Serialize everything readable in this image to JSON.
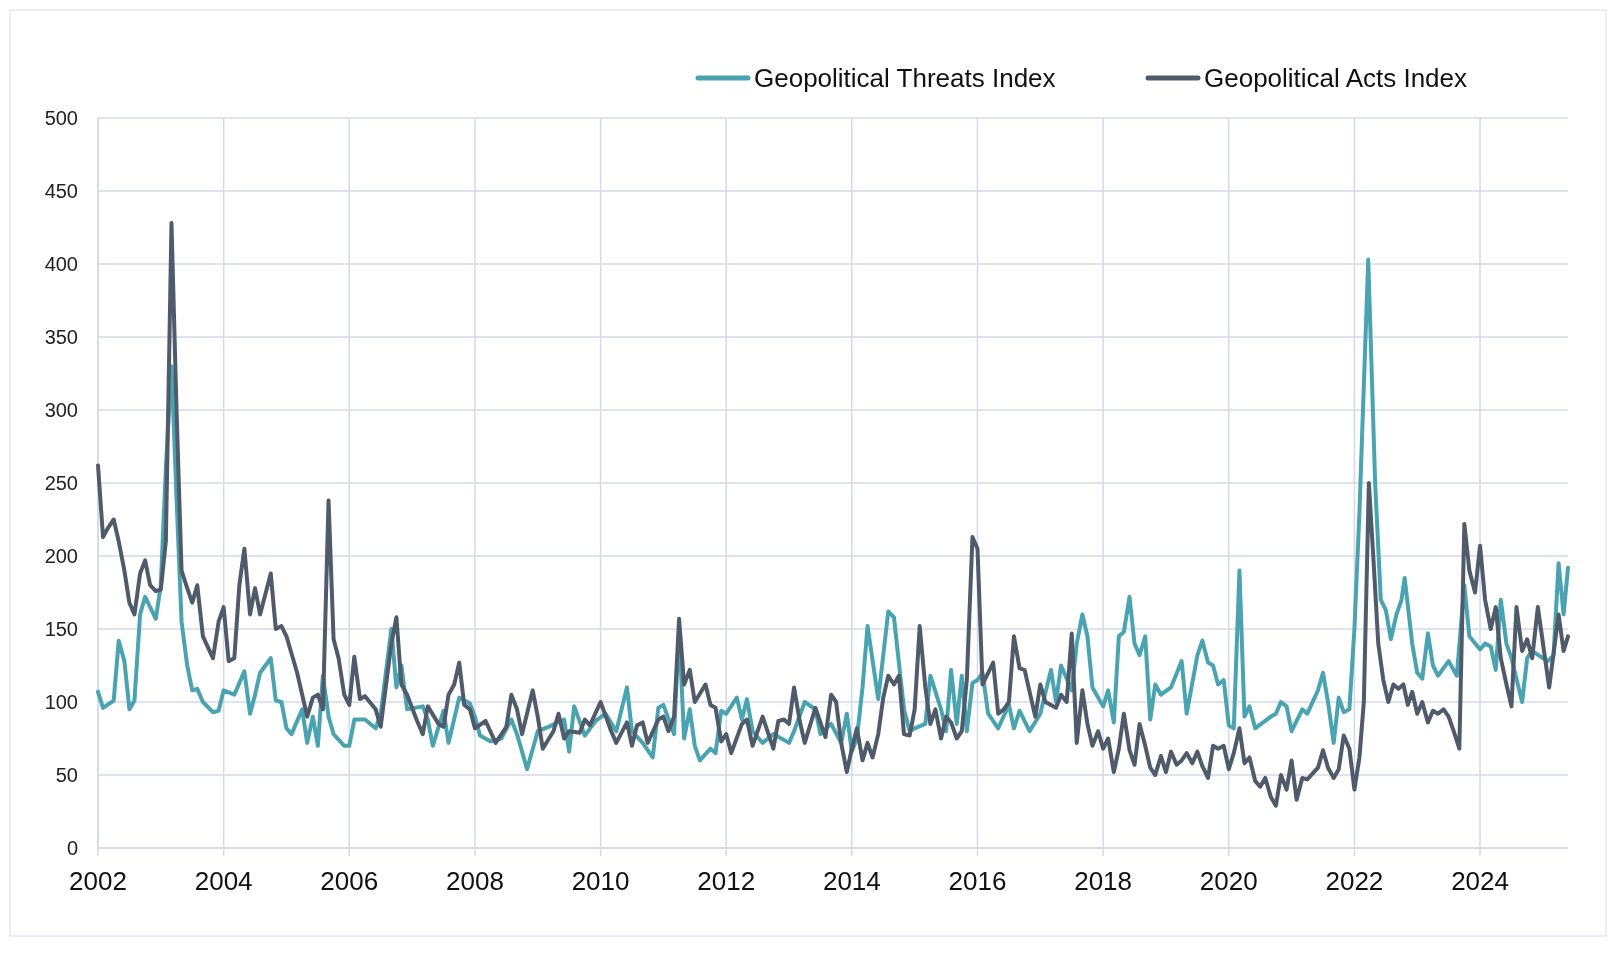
{
  "chart_data": {
    "type": "line",
    "xlim": [
      2002,
      2025.4
    ],
    "xticks": [
      2002,
      2004,
      2006,
      2008,
      2010,
      2012,
      2014,
      2016,
      2018,
      2020,
      2022,
      2024
    ],
    "ylim": [
      0,
      500
    ],
    "yticks": [
      0,
      50,
      100,
      150,
      200,
      250,
      300,
      350,
      400,
      450,
      500
    ],
    "grid": true,
    "legend": "top right",
    "marker": "none",
    "line_style": "solid",
    "series": [
      {
        "name": "Geopolitical Threats Index",
        "color": "#4aa3b0",
        "x": [
          2002,
          2002.08,
          2002.25,
          2002.33,
          2002.42,
          2002.5,
          2002.58,
          2002.67,
          2002.75,
          2002.83,
          2002.92,
          2003,
          2003.08,
          2003.17,
          2003.25,
          2003.33,
          2003.42,
          2003.5,
          2003.58,
          2003.67,
          2003.83,
          2003.92,
          2004,
          2004.17,
          2004.33,
          2004.42,
          2004.5,
          2004.58,
          2004.75,
          2004.83,
          2004.92,
          2005,
          2005.08,
          2005.25,
          2005.33,
          2005.42,
          2005.5,
          2005.58,
          2005.67,
          2005.75,
          2005.92,
          2006,
          2006.08,
          2006.25,
          2006.42,
          2006.5,
          2006.67,
          2006.75,
          2006.83,
          2006.92,
          2007.17,
          2007.25,
          2007.33,
          2007.5,
          2007.58,
          2007.75,
          2007.92,
          2008,
          2008.08,
          2008.25,
          2008.42,
          2008.58,
          2008.67,
          2008.83,
          2009,
          2009.17,
          2009.42,
          2009.5,
          2009.58,
          2009.75,
          2009.92,
          2010.08,
          2010.25,
          2010.42,
          2010.5,
          2010.67,
          2010.83,
          2010.92,
          2011,
          2011.17,
          2011.25,
          2011.33,
          2011.42,
          2011.5,
          2011.58,
          2011.75,
          2011.83,
          2011.92,
          2012,
          2012.17,
          2012.25,
          2012.33,
          2012.42,
          2012.58,
          2012.75,
          2012.92,
          2013,
          2013.08,
          2013.25,
          2013.42,
          2013.5,
          2013.67,
          2013.83,
          2013.92,
          2014,
          2014.08,
          2014.17,
          2014.25,
          2014.42,
          2014.58,
          2014.67,
          2014.83,
          2014.92,
          2015,
          2015.17,
          2015.25,
          2015.42,
          2015.5,
          2015.58,
          2015.67,
          2015.75,
          2015.83,
          2015.92,
          2016,
          2016.08,
          2016.17,
          2016.33,
          2016.5,
          2016.58,
          2016.67,
          2016.83,
          2017,
          2017.17,
          2017.25,
          2017.33,
          2017.5,
          2017.58,
          2017.67,
          2017.75,
          2017.83,
          2018,
          2018.08,
          2018.17,
          2018.25,
          2018.33,
          2018.42,
          2018.5,
          2018.58,
          2018.67,
          2018.75,
          2018.83,
          2018.92,
          2019.08,
          2019.25,
          2019.33,
          2019.5,
          2019.58,
          2019.67,
          2019.75,
          2019.83,
          2019.92,
          2020,
          2020.08,
          2020.17,
          2020.25,
          2020.33,
          2020.42,
          2020.67,
          2020.75,
          2020.83,
          2020.92,
          2021,
          2021.17,
          2021.25,
          2021.42,
          2021.5,
          2021.58,
          2021.67,
          2021.75,
          2021.83,
          2021.92,
          2022,
          2022.08,
          2022.22,
          2022.33,
          2022.42,
          2022.5,
          2022.58,
          2022.67,
          2022.75,
          2022.8,
          2022.92,
          2023,
          2023.08,
          2023.17,
          2023.25,
          2023.33,
          2023.5,
          2023.63,
          2023.75,
          2023.83,
          2024,
          2024.08,
          2024.17,
          2024.25,
          2024.33,
          2024.42,
          2024.5,
          2024.67,
          2024.75,
          2024.83,
          2025,
          2025.08,
          2025.17,
          2025.25,
          2025.33,
          2025.4
        ],
        "values": [
          107,
          96,
          101,
          142,
          128,
          95,
          101,
          160,
          172,
          165,
          157,
          180,
          260,
          330,
          240,
          155,
          125,
          108,
          109,
          100,
          93,
          94,
          108,
          105,
          121,
          92,
          105,
          120,
          130,
          101,
          100,
          82,
          78,
          95,
          72,
          90,
          70,
          118,
          90,
          78,
          70,
          70,
          88,
          88,
          82,
          92,
          150,
          110,
          125,
          95,
          97,
          88,
          70,
          94,
          72,
          103,
          99,
          90,
          77,
          73,
          75,
          88,
          78,
          54,
          80,
          83,
          88,
          66,
          97,
          77,
          87,
          92,
          80,
          110,
          80,
          72,
          62,
          96,
          98,
          78,
          150,
          75,
          95,
          70,
          60,
          68,
          65,
          94,
          92,
          103,
          88,
          102,
          80,
          72,
          78,
          74,
          72,
          80,
          100,
          95,
          78,
          85,
          72,
          92,
          66,
          75,
          110,
          152,
          102,
          162,
          158,
          95,
          80,
          82,
          85,
          118,
          95,
          80,
          122,
          85,
          118,
          80,
          113,
          115,
          120,
          92,
          82,
          98,
          82,
          94,
          80,
          92,
          122,
          100,
          125,
          108,
          140,
          160,
          145,
          110,
          97,
          108,
          86,
          145,
          148,
          172,
          140,
          132,
          145,
          88,
          112,
          105,
          110,
          128,
          92,
          132,
          142,
          127,
          125,
          112,
          115,
          84,
          82,
          190,
          90,
          97,
          82,
          90,
          92,
          100,
          97,
          80,
          95,
          92,
          108,
          120,
          100,
          72,
          103,
          93,
          95,
          150,
          230,
          403,
          250,
          170,
          163,
          143,
          160,
          170,
          185,
          140,
          120,
          116,
          147,
          125,
          118,
          128,
          118,
          180,
          145,
          136,
          140,
          138,
          122,
          170,
          140,
          130,
          100,
          130,
          135,
          130,
          128,
          132,
          195,
          160,
          192
        ]
      },
      {
        "name": "Geopolitical Acts Index",
        "color": "#4f5b6b",
        "x": [
          2002,
          2002.08,
          2002.17,
          2002.25,
          2002.33,
          2002.42,
          2002.5,
          2002.58,
          2002.67,
          2002.75,
          2002.83,
          2002.92,
          2003,
          2003.08,
          2003.17,
          2003.25,
          2003.33,
          2003.42,
          2003.5,
          2003.58,
          2003.67,
          2003.83,
          2003.92,
          2004,
          2004.08,
          2004.17,
          2004.25,
          2004.33,
          2004.42,
          2004.5,
          2004.58,
          2004.75,
          2004.83,
          2004.92,
          2005,
          2005.17,
          2005.33,
          2005.42,
          2005.5,
          2005.58,
          2005.67,
          2005.75,
          2005.83,
          2005.92,
          2006,
          2006.08,
          2006.17,
          2006.25,
          2006.42,
          2006.5,
          2006.58,
          2006.67,
          2006.75,
          2006.83,
          2006.92,
          2007.08,
          2007.17,
          2007.25,
          2007.42,
          2007.5,
          2007.58,
          2007.67,
          2007.75,
          2007.83,
          2007.92,
          2008,
          2008.17,
          2008.33,
          2008.5,
          2008.58,
          2008.67,
          2008.75,
          2008.92,
          2009,
          2009.08,
          2009.25,
          2009.33,
          2009.42,
          2009.5,
          2009.67,
          2009.75,
          2009.83,
          2010,
          2010.17,
          2010.25,
          2010.42,
          2010.5,
          2010.58,
          2010.67,
          2010.75,
          2010.92,
          2011,
          2011.08,
          2011.17,
          2011.25,
          2011.33,
          2011.42,
          2011.5,
          2011.67,
          2011.75,
          2011.83,
          2011.92,
          2012,
          2012.08,
          2012.25,
          2012.33,
          2012.42,
          2012.5,
          2012.58,
          2012.75,
          2012.83,
          2012.92,
          2013,
          2013.08,
          2013.17,
          2013.25,
          2013.42,
          2013.58,
          2013.67,
          2013.75,
          2013.83,
          2013.92,
          2014,
          2014.08,
          2014.17,
          2014.25,
          2014.33,
          2014.42,
          2014.5,
          2014.58,
          2014.67,
          2014.75,
          2014.83,
          2014.92,
          2015,
          2015.08,
          2015.17,
          2015.25,
          2015.33,
          2015.42,
          2015.5,
          2015.58,
          2015.67,
          2015.75,
          2015.83,
          2015.92,
          2016,
          2016.08,
          2016.17,
          2016.25,
          2016.33,
          2016.42,
          2016.5,
          2016.58,
          2016.67,
          2016.75,
          2016.92,
          2017,
          2017.08,
          2017.25,
          2017.33,
          2017.42,
          2017.5,
          2017.58,
          2017.67,
          2017.75,
          2017.83,
          2017.92,
          2018,
          2018.08,
          2018.17,
          2018.25,
          2018.33,
          2018.42,
          2018.5,
          2018.58,
          2018.67,
          2018.75,
          2018.83,
          2018.92,
          2019,
          2019.08,
          2019.17,
          2019.25,
          2019.33,
          2019.42,
          2019.5,
          2019.58,
          2019.67,
          2019.75,
          2019.83,
          2019.92,
          2020,
          2020.08,
          2020.17,
          2020.25,
          2020.33,
          2020.42,
          2020.5,
          2020.58,
          2020.67,
          2020.75,
          2020.83,
          2020.92,
          2021,
          2021.08,
          2021.17,
          2021.25,
          2021.42,
          2021.5,
          2021.58,
          2021.67,
          2021.75,
          2021.83,
          2021.92,
          2022,
          2022.08,
          2022.15,
          2022.23,
          2022.3,
          2022.38,
          2022.46,
          2022.54,
          2022.62,
          2022.7,
          2022.78,
          2022.85,
          2022.92,
          2023,
          2023.08,
          2023.17,
          2023.25,
          2023.33,
          2023.42,
          2023.5,
          2023.58,
          2023.67,
          2023.75,
          2023.83,
          2023.92,
          2024,
          2024.08,
          2024.17,
          2024.25,
          2024.33,
          2024.42,
          2024.5,
          2024.58,
          2024.67,
          2024.75,
          2024.83,
          2024.92,
          2025.1,
          2025.25,
          2025.33,
          2025.4
        ],
        "values": [
          262,
          213,
          220,
          225,
          210,
          190,
          168,
          160,
          188,
          197,
          180,
          176,
          177,
          210,
          428,
          300,
          190,
          178,
          168,
          180,
          145,
          130,
          155,
          165,
          128,
          130,
          180,
          205,
          160,
          178,
          160,
          188,
          150,
          152,
          145,
          120,
          90,
          103,
          105,
          95,
          238,
          143,
          130,
          105,
          98,
          131,
          102,
          104,
          95,
          83,
          110,
          140,
          158,
          112,
          105,
          87,
          78,
          97,
          85,
          83,
          105,
          112,
          127,
          98,
          95,
          82,
          87,
          72,
          83,
          105,
          95,
          78,
          108,
          90,
          68,
          80,
          92,
          75,
          80,
          79,
          88,
          84,
          100,
          80,
          72,
          86,
          70,
          84,
          86,
          72,
          88,
          90,
          80,
          90,
          157,
          112,
          122,
          100,
          112,
          98,
          96,
          73,
          78,
          65,
          85,
          88,
          70,
          80,
          90,
          68,
          87,
          88,
          85,
          110,
          87,
          72,
          96,
          76,
          105,
          100,
          72,
          52,
          68,
          82,
          60,
          72,
          62,
          78,
          103,
          118,
          112,
          118,
          78,
          77,
          95,
          152,
          110,
          85,
          95,
          75,
          90,
          86,
          75,
          80,
          115,
          213,
          205,
          112,
          120,
          127,
          92,
          95,
          100,
          145,
          123,
          122,
          90,
          112,
          100,
          96,
          105,
          100,
          147,
          72,
          108,
          85,
          70,
          80,
          68,
          75,
          52,
          68,
          92,
          67,
          57,
          85,
          70,
          55,
          50,
          63,
          52,
          66,
          57,
          60,
          65,
          58,
          66,
          56,
          48,
          70,
          68,
          70,
          54,
          65,
          82,
          58,
          62,
          46,
          42,
          48,
          35,
          29,
          50,
          40,
          60,
          33,
          48,
          47,
          55,
          67,
          55,
          48,
          54,
          77,
          68,
          40,
          62,
          100,
          250,
          200,
          140,
          115,
          100,
          112,
          109,
          112,
          98,
          107,
          92,
          100,
          86,
          94,
          92,
          95,
          90,
          80,
          68,
          222,
          190,
          175,
          207,
          170,
          150,
          165,
          130,
          112,
          97,
          165,
          135,
          143,
          130,
          165,
          110,
          160,
          135,
          145
        ]
      }
    ]
  }
}
